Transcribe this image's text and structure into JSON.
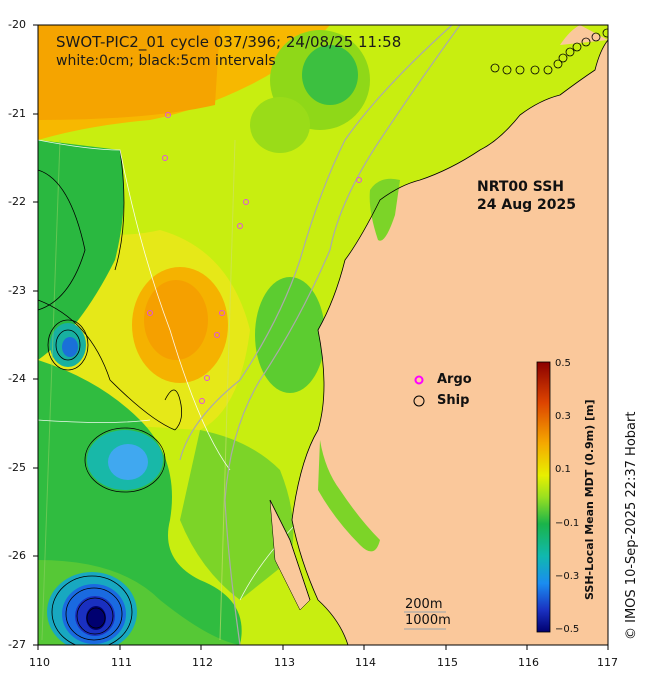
{
  "title": "SWOT-PIC2_01 cycle 037/396; 24/08/25 11:58",
  "subtitle": "white:0cm; black:5cm intervals",
  "product": {
    "line1": "NRT00 SSH",
    "line2": "24 Aug 2025"
  },
  "legend": {
    "argo_label": "Argo",
    "ship_label": "Ship",
    "argo_color": "#ff00ff",
    "ship_color": "#000000"
  },
  "scale_labels": {
    "depth1": "200m",
    "depth2": "1000m"
  },
  "axes": {
    "x_ticks": [
      "110",
      "111",
      "112",
      "113",
      "114",
      "115",
      "116",
      "117"
    ],
    "y_ticks": [
      "-20",
      "-21",
      "-22",
      "-23",
      "-24",
      "-25",
      "-26",
      "-27"
    ],
    "xlim": [
      110,
      117
    ],
    "ylim": [
      -27,
      -20
    ]
  },
  "colorbar": {
    "title": "SSH-Local Mean MDT (0.9m) [m]",
    "ticks": [
      "0.5",
      "0.3",
      "0.1",
      "−0.1",
      "−0.3",
      "−0.5"
    ],
    "range": [
      -0.5,
      0.5
    ]
  },
  "credit": "© IMOS 10-Sep-2025 22:37 Hobart",
  "colors": {
    "land": "#fac89b",
    "high_ssh": "#f5a000",
    "mid_ssh": "#c8ee10",
    "low_ssh": "#1ab44a",
    "very_low_ssh": "#0a2a9a"
  }
}
